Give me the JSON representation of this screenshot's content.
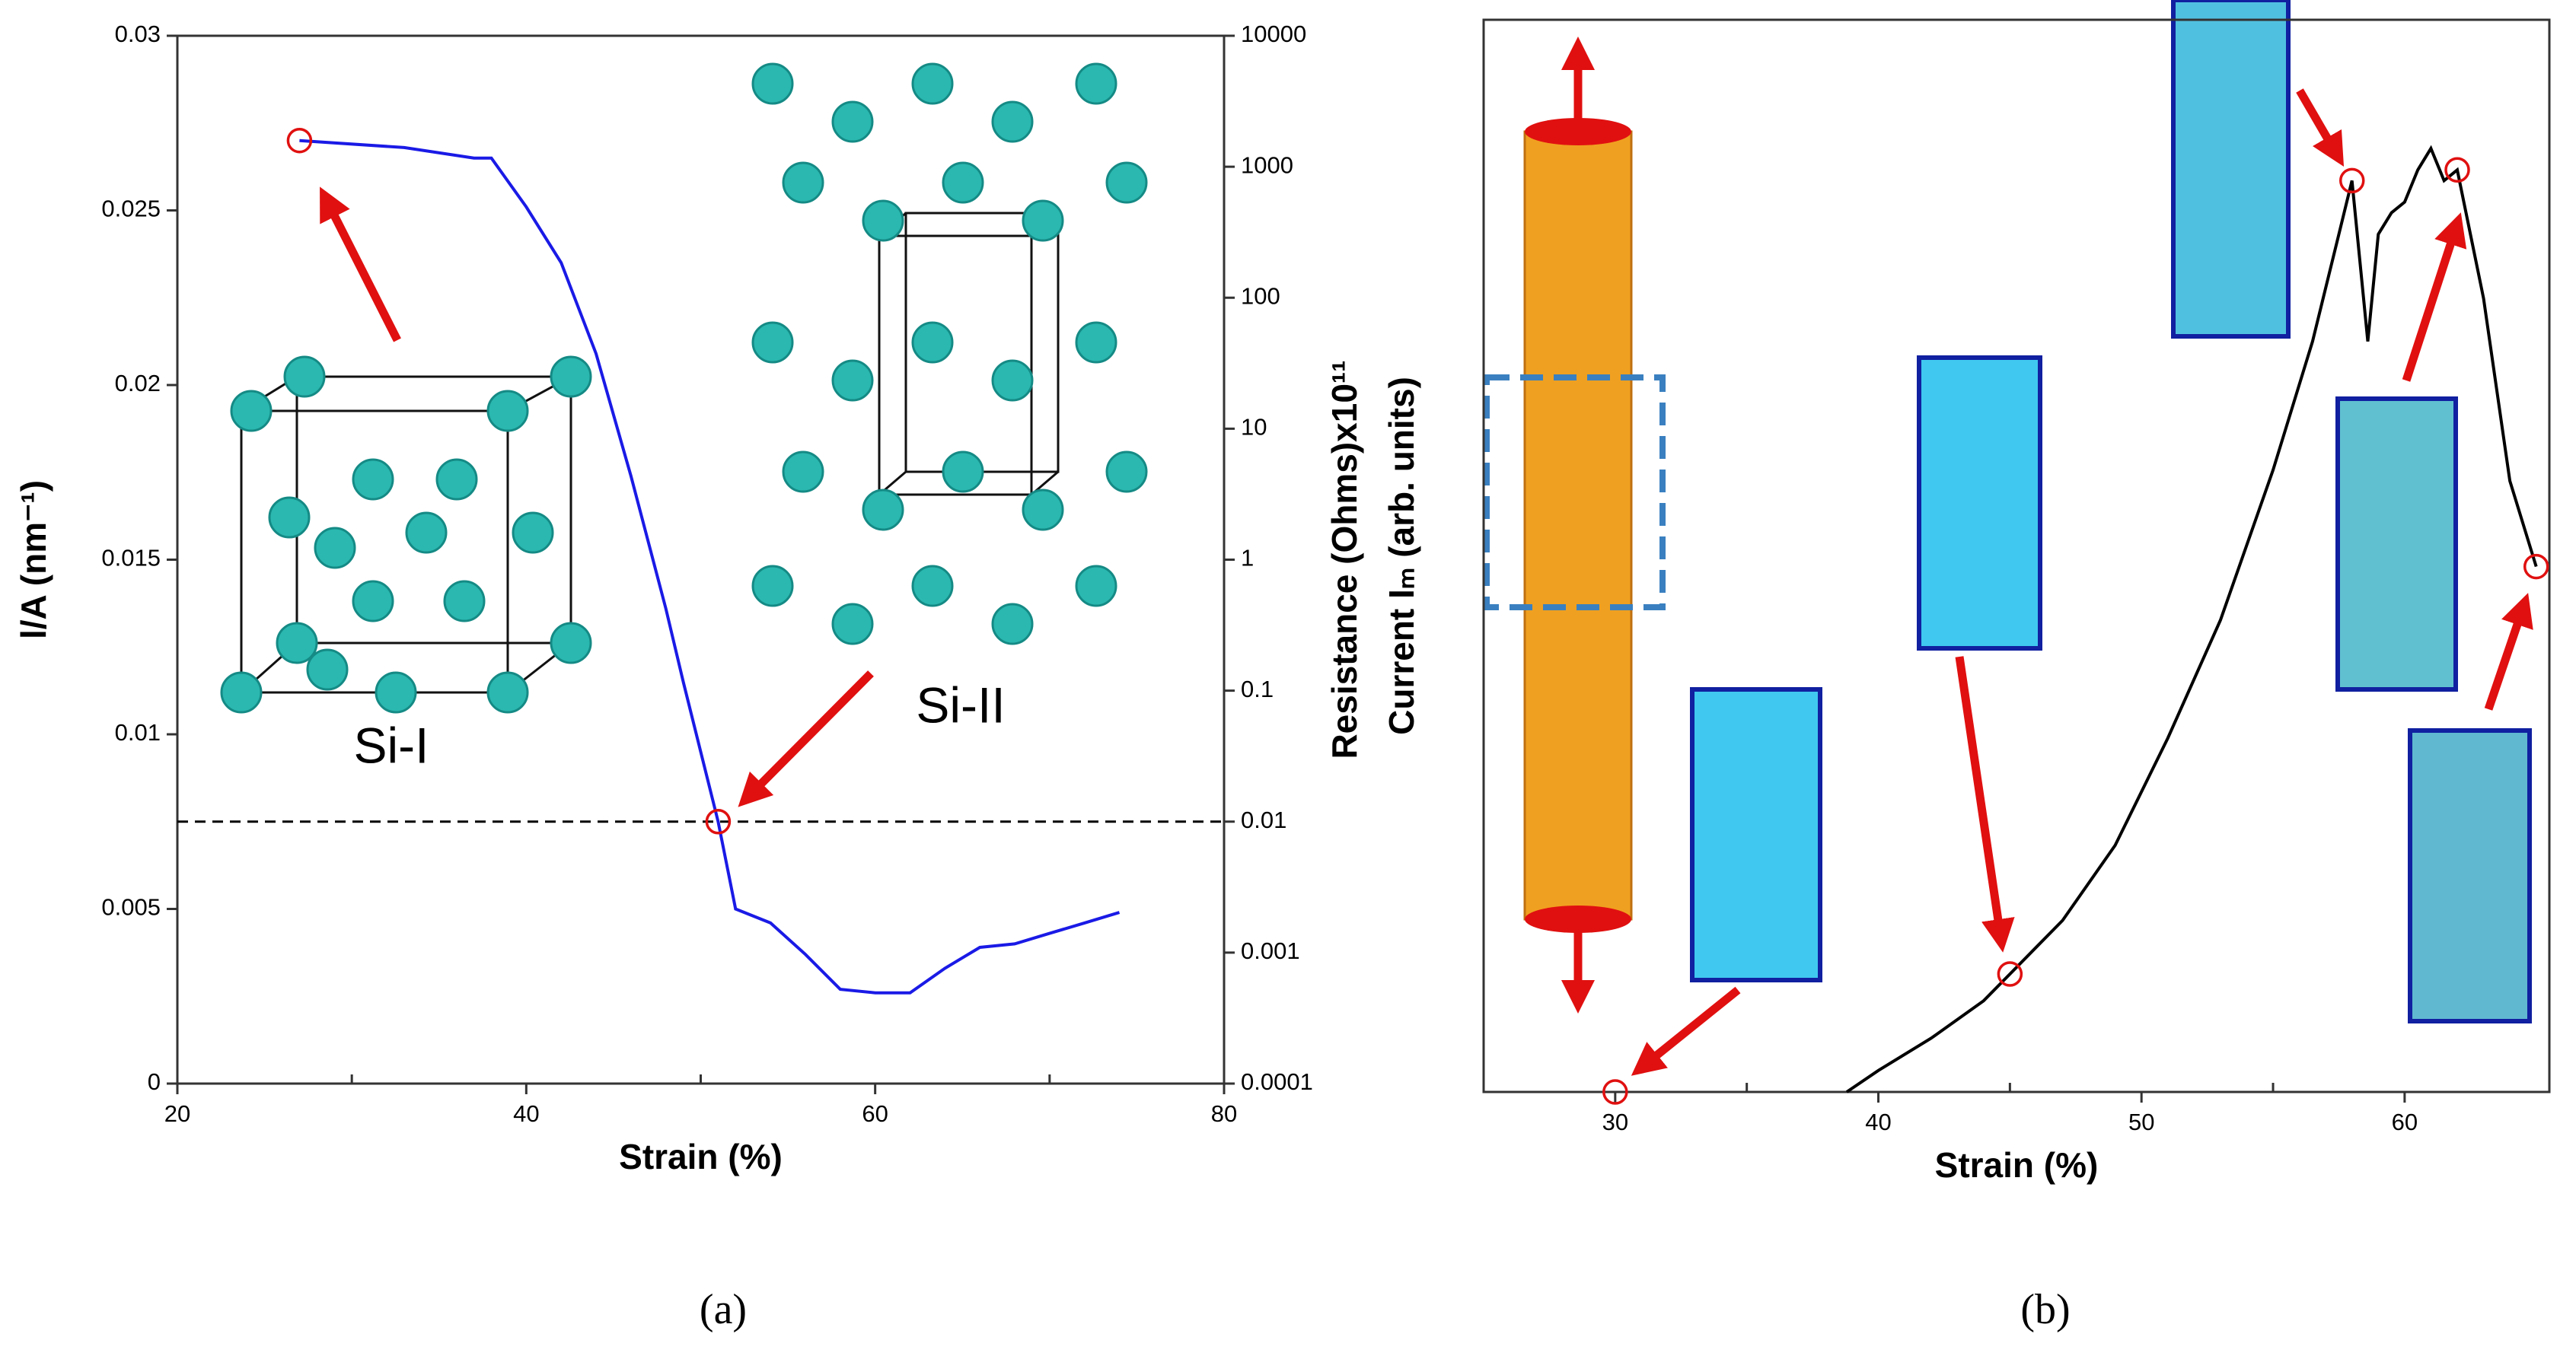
{
  "charts": [
    {
      "chart_data": {
        "type": "line",
        "xlabel": "Strain (%)",
        "ylabel": "l/A (nm⁻¹)",
        "y2label": "Resistance (Ohms)x10¹¹",
        "caption": "(a)",
        "annotations": [
          "Si-I",
          "Si-II"
        ],
        "xlim": [
          20,
          80
        ],
        "xticks": [
          20,
          40,
          60,
          80
        ],
        "minor_xticks": [
          30,
          50,
          70
        ],
        "ylim": [
          0,
          0.03
        ],
        "yticks": [
          0,
          0.005,
          0.01,
          0.015,
          0.02,
          0.025,
          0.03
        ],
        "y2lim": [
          0.0001,
          10000
        ],
        "y2scale": "log",
        "y2ticks": [
          0.0001,
          0.001,
          0.01,
          0.1,
          1,
          10,
          100,
          1000,
          10000
        ],
        "hline": 0.0075,
        "series": [
          {
            "style": "line",
            "color": "#1a1ae6",
            "x": [
              27,
              33,
              37,
              38,
              40,
              42,
              44,
              46,
              48,
              49,
              50,
              51,
              52,
              54,
              56,
              58,
              60,
              62,
              64,
              66,
              68,
              70,
              72,
              74
            ],
            "values": [
              0.027,
              0.0268,
              0.0265,
              0.0265,
              0.0251,
              0.0235,
              0.0209,
              0.0174,
              0.0136,
              0.0115,
              0.0095,
              0.0075,
              0.005,
              0.0046,
              0.0037,
              0.0027,
              0.0026,
              0.0026,
              0.0033,
              0.0039,
              0.004,
              0.0043,
              0.0046,
              0.0049
            ]
          },
          {
            "style": "marker",
            "color": "#e01010",
            "x": [
              27,
              51
            ],
            "values": [
              0.027,
              0.0075
            ]
          }
        ]
      }
    },
    {
      "chart_data": {
        "type": "line",
        "xlabel": "Strain (%)",
        "ylabel": "Current  Iₘ (arb. units)",
        "caption": "(b)",
        "xlim": [
          25,
          65.5
        ],
        "xticks": [
          30,
          40,
          50,
          60
        ],
        "minor_xticks": [
          35,
          45,
          55
        ],
        "ylim": [
          0,
          1
        ],
        "series": [
          {
            "style": "line",
            "color": "#000000",
            "x": [
              38.8,
              40,
              42,
              44,
              45,
              47,
              49,
              51,
              53,
              55,
              56.5,
              57.5,
              58,
              58.6,
              59,
              59.5,
              60,
              60.5,
              61,
              61.5,
              62,
              62.5,
              63,
              64,
              65
            ],
            "values": [
              0,
              0.02,
              0.05,
              0.085,
              0.11,
              0.16,
              0.23,
              0.33,
              0.44,
              0.58,
              0.7,
              0.8,
              0.85,
              0.7,
              0.8,
              0.82,
              0.83,
              0.86,
              0.88,
              0.85,
              0.86,
              0.8,
              0.74,
              0.57,
              0.49
            ]
          },
          {
            "style": "marker",
            "color": "#e01010",
            "x": [
              30,
              45,
              58,
              62,
              65
            ],
            "values": [
              0,
              0.11,
              0.85,
              0.86,
              0.49
            ]
          }
        ]
      }
    }
  ]
}
